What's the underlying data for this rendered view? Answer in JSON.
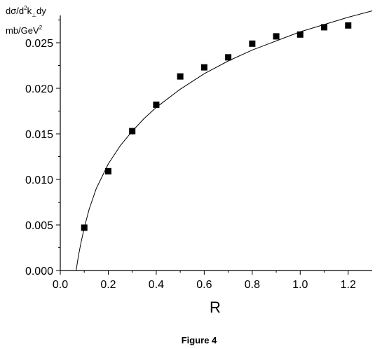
{
  "caption": "Figure 4",
  "chart_data": {
    "type": "scatter",
    "xlabel": "R",
    "ylabel": {
      "line1_parts": [
        "dσ/d",
        "2",
        "k",
        "⊥",
        "dy"
      ],
      "line2_parts": [
        "mb/GeV",
        "2"
      ]
    },
    "xlim": [
      0.0,
      1.3
    ],
    "ylim": [
      0.0,
      0.028
    ],
    "x_ticks": [
      0.0,
      0.2,
      0.4,
      0.6,
      0.8,
      1.0,
      1.2
    ],
    "x_tick_labels": [
      "0.0",
      "0.2",
      "0.4",
      "0.6",
      "0.8",
      "1.0",
      "1.2"
    ],
    "y_ticks": [
      0.0,
      0.005,
      0.01,
      0.015,
      0.02,
      0.025
    ],
    "y_tick_labels": [
      "0.000",
      "0.005",
      "0.010",
      "0.015",
      "0.020",
      "0.025"
    ],
    "grid": false,
    "series": [
      {
        "kind": "points",
        "marker": "square",
        "x": [
          0.1,
          0.2,
          0.3,
          0.4,
          0.5,
          0.6,
          0.7,
          0.8,
          0.9,
          1.0,
          1.1,
          1.2
        ],
        "y": [
          0.0047,
          0.0109,
          0.0153,
          0.0182,
          0.0213,
          0.0223,
          0.0234,
          0.0249,
          0.0257,
          0.0259,
          0.0267,
          0.0269
        ]
      },
      {
        "kind": "line",
        "x": [
          0.066,
          0.075,
          0.085,
          0.1,
          0.12,
          0.15,
          0.2,
          0.25,
          0.3,
          0.35,
          0.4,
          0.5,
          0.6,
          0.7,
          0.8,
          0.9,
          1.0,
          1.1,
          1.2,
          1.3
        ],
        "y": [
          0.0,
          0.0015,
          0.0029,
          0.0047,
          0.0067,
          0.009,
          0.0117,
          0.0137,
          0.0153,
          0.0167,
          0.0179,
          0.0199,
          0.0216,
          0.023,
          0.0242,
          0.0252,
          0.0262,
          0.027,
          0.0278,
          0.0285
        ]
      }
    ]
  }
}
